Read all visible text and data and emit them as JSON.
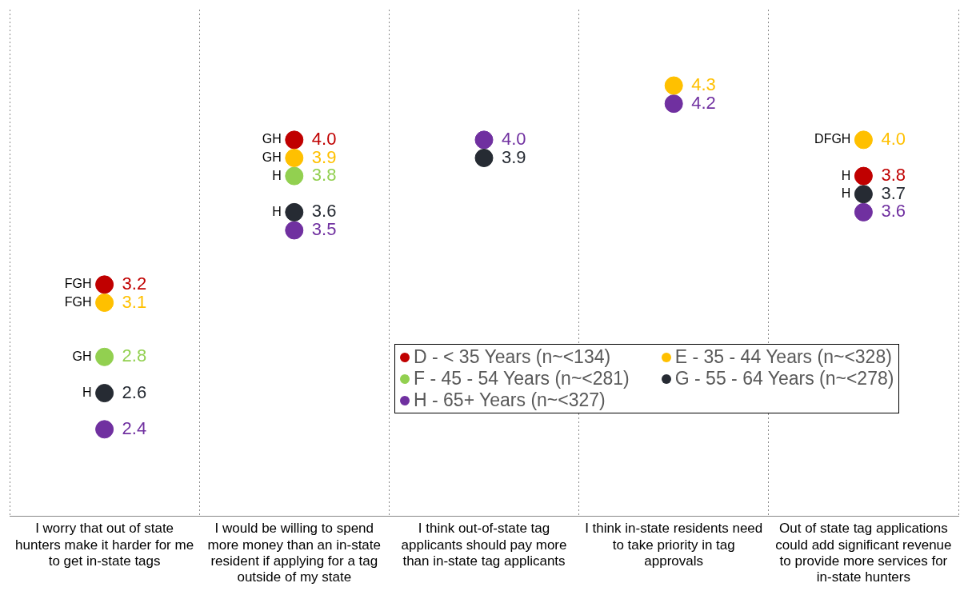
{
  "chart_data": {
    "type": "scatter",
    "categories": [
      "I worry that out of state hunters make it harder for me to get in-state tags",
      "I would be willing to spend more money than an in-state resident if applying for a tag outside of my state",
      "I think out-of-state tag applicants should pay more than in-state tag applicants",
      "I think in-state residents need to take priority in tag approvals",
      "Out of state tag applications could add significant revenue to provide more services for in-state hunters"
    ],
    "series": [
      {
        "name": "D - < 35 Years (n~<134)",
        "color": "#c00000",
        "values": [
          3.2,
          4.0,
          null,
          null,
          3.8
        ],
        "value_labels": [
          "3.2",
          "4.0",
          null,
          null,
          "3.8"
        ]
      },
      {
        "name": "E - 35 - 44 Years (n~<328)",
        "color": "#ffc000",
        "values": [
          3.1,
          3.9,
          null,
          4.3,
          4.0
        ],
        "value_labels": [
          "3.1",
          "3.9",
          null,
          "4.3",
          "4.0"
        ]
      },
      {
        "name": "F - 45 - 54 Years (n~<281)",
        "color": "#92d050",
        "values": [
          2.8,
          3.8,
          null,
          null,
          null
        ],
        "value_labels": [
          "2.8",
          "3.8",
          null,
          null,
          null
        ]
      },
      {
        "name": "G - 55 - 64 Years (n~<278)",
        "color": "#262b33",
        "values": [
          2.6,
          3.6,
          3.9,
          null,
          3.7
        ],
        "value_labels": [
          "2.6",
          "3.6",
          "3.9",
          null,
          "3.7"
        ]
      },
      {
        "name": "H - 65+ Years (n~<327)",
        "color": "#7030a0",
        "values": [
          2.4,
          3.5,
          4.0,
          4.2,
          3.6
        ],
        "value_labels": [
          "2.4",
          "3.5",
          "4.0",
          "4.2",
          "3.6"
        ]
      }
    ],
    "annotations": [
      {
        "text": "FGH",
        "x": "I worry that out of state hunters make it harder for me to get in-state tags",
        "y": 3.2
      },
      {
        "text": "FGH",
        "x": "I worry that out of state hunters make it harder for me to get in-state tags",
        "y": 3.1
      },
      {
        "text": "GH",
        "x": "I worry that out of state hunters make it harder for me to get in-state tags",
        "y": 2.8
      },
      {
        "text": "H",
        "x": "I worry that out of state hunters make it harder for me to get in-state tags",
        "y": 2.6
      },
      {
        "text": "GH",
        "x": "I would be willing to spend more money than an in-state resident if applying for a tag outside of my state",
        "y": 4.0
      },
      {
        "text": "GH",
        "x": "I would be willing to spend more money than an in-state resident if applying for a tag outside of my state",
        "y": 3.9
      },
      {
        "text": "H",
        "x": "I would be willing to spend more money than an in-state resident if applying for a tag outside of my state",
        "y": 3.8
      },
      {
        "text": "H",
        "x": "I would be willing to spend more money than an in-state resident if applying for a tag outside of my state",
        "y": 3.6
      },
      {
        "text": "DFGH",
        "x": "Out of state tag applications could add significant revenue to provide more services for in-state hunters",
        "y": 4.0
      },
      {
        "text": "H",
        "x": "Out of state tag applications could add significant revenue to provide more services for in-state hunters",
        "y": 3.8
      },
      {
        "text": "H",
        "x": "Out of state tag applications could add significant revenue to provide more services for in-state hunters",
        "y": 3.7
      }
    ],
    "marker": "circle",
    "grid": "x",
    "legend": "right"
  }
}
